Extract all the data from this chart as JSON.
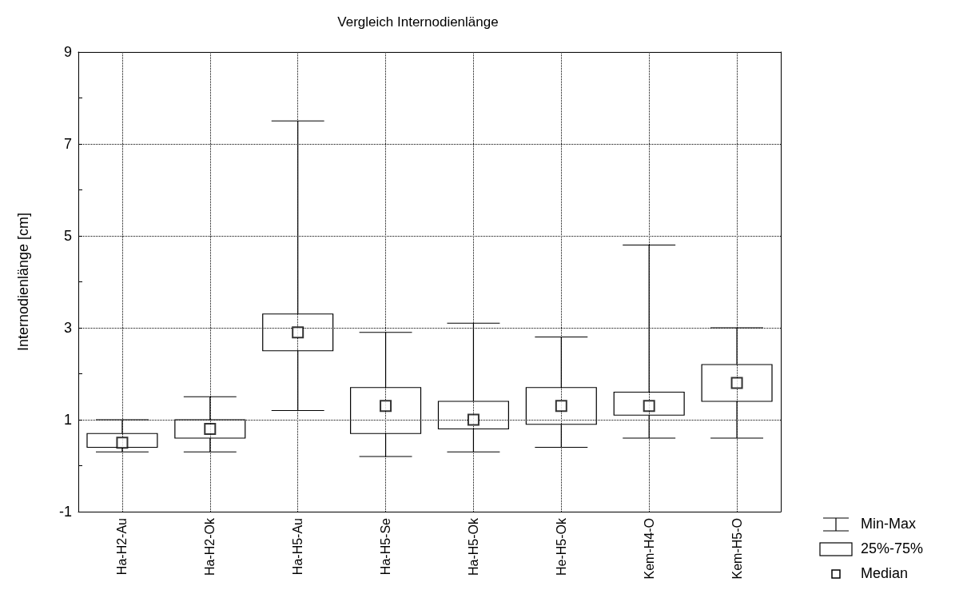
{
  "chart_data": {
    "type": "box",
    "title": "Vergleich Internodienlänge",
    "ylabel": "Internodienlänge [cm]",
    "categories": [
      "Ha-H2-Au",
      "Ha-H2-Ok",
      "Ha-H5-Au",
      "Ha-H5-Se",
      "Ha-H5-Ok",
      "He-H5-Ok",
      "Kem-H4-O",
      "Kem-H5-O"
    ],
    "boxes": [
      {
        "low": 0.3,
        "q1": 0.4,
        "median": 0.5,
        "q3": 0.7,
        "high": 1.0
      },
      {
        "low": 0.3,
        "q1": 0.6,
        "median": 0.8,
        "q3": 1.0,
        "high": 1.5
      },
      {
        "low": 1.2,
        "q1": 2.5,
        "median": 2.9,
        "q3": 3.3,
        "high": 7.5
      },
      {
        "low": 0.2,
        "q1": 0.7,
        "median": 1.3,
        "q3": 1.7,
        "high": 2.9
      },
      {
        "low": 0.3,
        "q1": 0.8,
        "median": 1.0,
        "q3": 1.4,
        "high": 3.1
      },
      {
        "low": 0.4,
        "q1": 0.9,
        "median": 1.3,
        "q3": 1.7,
        "high": 2.8
      },
      {
        "low": 0.6,
        "q1": 1.1,
        "median": 1.3,
        "q3": 1.6,
        "high": 4.8
      },
      {
        "low": 0.6,
        "q1": 1.4,
        "median": 1.8,
        "q3": 2.2,
        "high": 3.0
      }
    ],
    "color": "#000000",
    "ylim": [
      -1,
      9
    ],
    "yticks": [
      -1,
      {
        "value": 0,
        "label": null
      },
      1,
      {
        "value": 2,
        "label": null
      },
      3,
      {
        "value": 4,
        "label": null
      },
      5,
      {
        "value": 6,
        "label": null
      },
      7,
      {
        "value": 8,
        "label": null
      },
      9
    ],
    "grid": true,
    "marker": "square",
    "annotations": [
      "Min-Max",
      "25%-75%",
      "Median"
    ]
  }
}
